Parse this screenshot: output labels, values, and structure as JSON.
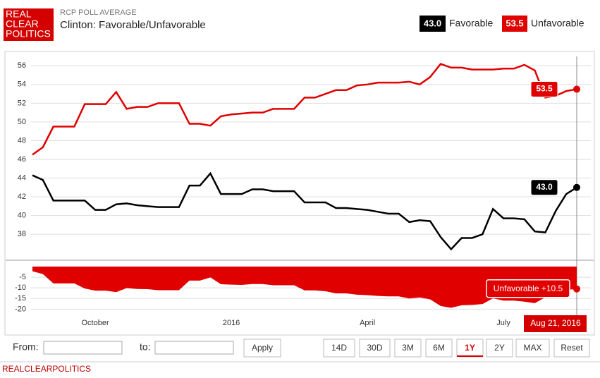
{
  "header": {
    "logo": [
      "REAL",
      "CLEAR",
      "POLITICS"
    ],
    "kicker": "RCP POLL AVERAGE"
  },
  "chart_data": {
    "type": "line",
    "title": "Clinton: Favorable/Unfavorable",
    "categories": [
      null,
      null,
      null,
      null,
      null,
      null,
      "October",
      null,
      null,
      null,
      null,
      null,
      null,
      null,
      null,
      null,
      null,
      null,
      null,
      "2016",
      null,
      null,
      null,
      null,
      null,
      null,
      null,
      null,
      null,
      null,
      null,
      null,
      "April",
      null,
      null,
      null,
      null,
      null,
      null,
      null,
      null,
      null,
      null,
      null,
      null,
      "July",
      null,
      null,
      null,
      null,
      null,
      null,
      "Aug 21, 2016"
    ],
    "series": [
      {
        "name": "Favorable",
        "color": "#000000",
        "last_label": "43.0",
        "axis": "y",
        "values": [
          44.3,
          43.8,
          41.6,
          41.6,
          41.6,
          41.6,
          40.6,
          40.6,
          41.2,
          41.3,
          41.1,
          41,
          40.9,
          40.9,
          40.9,
          43.2,
          43.2,
          44.5,
          42.3,
          42.3,
          42.3,
          42.8,
          42.8,
          42.6,
          42.6,
          42.6,
          41.4,
          41.4,
          41.4,
          40.8,
          40.8,
          40.7,
          40.6,
          40.4,
          40.2,
          40.2,
          39.3,
          39.5,
          39.4,
          37.7,
          36.4,
          37.6,
          37.6,
          38,
          40.7,
          39.7,
          39.7,
          39.6,
          38.3,
          38.2,
          40.5,
          42.3,
          43
        ]
      },
      {
        "name": "Unfavorable",
        "color": "#e00000",
        "last_label": "53.5",
        "axis": "y",
        "values": [
          46.5,
          47.3,
          49.5,
          49.5,
          49.5,
          51.9,
          51.9,
          51.9,
          53.2,
          51.4,
          51.6,
          51.6,
          52,
          52,
          52,
          49.8,
          49.8,
          49.6,
          50.6,
          50.8,
          50.9,
          51,
          51,
          51.4,
          51.4,
          51.4,
          52.6,
          52.6,
          53,
          53.4,
          53.4,
          53.9,
          54,
          54.2,
          54.2,
          54.2,
          54.3,
          54,
          54.8,
          56.2,
          55.8,
          55.8,
          55.6,
          55.6,
          55.6,
          55.7,
          55.7,
          56.1,
          55.5,
          52.6,
          52.8,
          53.3,
          53.5
        ]
      },
      {
        "type": "area",
        "color": "#e00000",
        "axis": "y2",
        "last_label": "Unfavorable +10.5",
        "values": [
          -2.2,
          -3.5,
          -7.9,
          -7.9,
          -7.9,
          -10.3,
          -11.3,
          -11.3,
          -12,
          -10.1,
          -10.5,
          -10.6,
          -11.1,
          -11.1,
          -11.1,
          -6.6,
          -6.6,
          -5.1,
          -8.3,
          -8.5,
          -8.6,
          -8.2,
          -8.2,
          -8.8,
          -8.8,
          -8.8,
          -11.2,
          -11.2,
          -11.6,
          -12.6,
          -12.6,
          -13.2,
          -13.4,
          -13.8,
          -14,
          -14,
          -15,
          -14.5,
          -15.4,
          -18.5,
          -19.4,
          -18.2,
          -18,
          -17.6,
          -14.9,
          -16,
          -16,
          -16.5,
          -17.2,
          -14.4,
          -12.3,
          -11,
          -10.5
        ]
      }
    ],
    "ylim": [
      35.3,
      57
    ],
    "yticks": [
      38,
      40,
      42,
      44,
      46,
      48,
      50,
      52,
      54,
      56
    ],
    "y2lim": [
      -22.2,
      0
    ],
    "y2ticks": [
      -5,
      -10,
      -15,
      -20
    ],
    "grid": true
  },
  "controls": {
    "from": "From:",
    "to": "to:",
    "apply": "Apply",
    "ranges": [
      "14D",
      "30D",
      "3M",
      "6M",
      "1Y",
      "2Y",
      "MAX"
    ],
    "active": 4,
    "reset": "Reset"
  },
  "footer": "REALCLEARPOLITICS"
}
